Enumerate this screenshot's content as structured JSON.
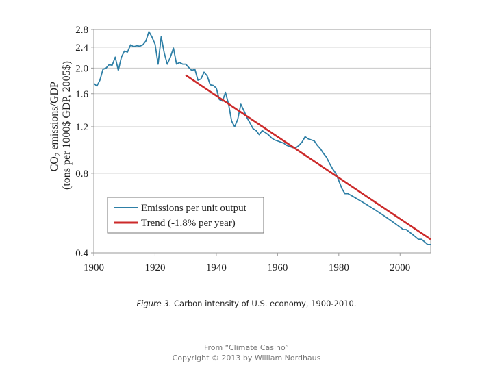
{
  "chart_data": {
    "type": "line",
    "ylabel_line1_prefix": "CO",
    "ylabel_line1_sub": "2",
    "ylabel_line1_suffix": " emissions/GDP",
    "ylabel_line2": "(tons per 1000$ GDP, 2005$)",
    "xlabel": "",
    "y_scale": "log",
    "xlim": [
      1900,
      2010
    ],
    "ylim": [
      0.4,
      2.8
    ],
    "x_ticks": [
      1900,
      1920,
      1940,
      1960,
      1980,
      2000
    ],
    "y_ticks": [
      0.4,
      0.8,
      1.2,
      1.6,
      2.0,
      2.4,
      2.8
    ],
    "y_tick_labels": [
      "0.4",
      "0.8",
      "1.2",
      "1.6",
      "2.0",
      "2.4",
      "2.8"
    ],
    "grid": "horizontal",
    "legend_position": "lower-left",
    "series": [
      {
        "name": "Emissions per unit output",
        "color": "#2e7fa6",
        "x": [
          1900,
          1901,
          1902,
          1903,
          1904,
          1905,
          1906,
          1907,
          1908,
          1909,
          1910,
          1911,
          1912,
          1913,
          1914,
          1915,
          1916,
          1917,
          1918,
          1919,
          1920,
          1921,
          1922,
          1923,
          1924,
          1925,
          1926,
          1927,
          1928,
          1929,
          1930,
          1931,
          1932,
          1933,
          1934,
          1935,
          1936,
          1937,
          1938,
          1939,
          1940,
          1941,
          1942,
          1943,
          1944,
          1945,
          1946,
          1947,
          1948,
          1949,
          1950,
          1951,
          1952,
          1953,
          1954,
          1955,
          1956,
          1957,
          1958,
          1959,
          1960,
          1961,
          1962,
          1963,
          1964,
          1965,
          1966,
          1967,
          1968,
          1969,
          1970,
          1971,
          1972,
          1973,
          1974,
          1975,
          1976,
          1977,
          1978,
          1979,
          1980,
          1981,
          1982,
          1983,
          1984,
          1985,
          1986,
          1987,
          1988,
          1989,
          1990,
          1991,
          1992,
          1993,
          1994,
          1995,
          1996,
          1997,
          1998,
          1999,
          2000,
          2001,
          2002,
          2003,
          2004,
          2005,
          2006,
          2007,
          2008,
          2009,
          2010
        ],
        "values": [
          1.75,
          1.71,
          1.8,
          1.98,
          2.0,
          2.06,
          2.05,
          2.2,
          1.96,
          2.2,
          2.32,
          2.3,
          2.45,
          2.41,
          2.43,
          2.42,
          2.45,
          2.53,
          2.75,
          2.62,
          2.46,
          2.07,
          2.63,
          2.28,
          2.07,
          2.2,
          2.38,
          2.07,
          2.1,
          2.07,
          2.07,
          2.01,
          1.96,
          1.98,
          1.8,
          1.82,
          1.93,
          1.87,
          1.73,
          1.72,
          1.68,
          1.52,
          1.5,
          1.62,
          1.46,
          1.26,
          1.2,
          1.28,
          1.46,
          1.38,
          1.3,
          1.24,
          1.18,
          1.16,
          1.12,
          1.16,
          1.14,
          1.12,
          1.09,
          1.07,
          1.06,
          1.05,
          1.04,
          1.02,
          1.01,
          1.0,
          1.0,
          1.02,
          1.05,
          1.1,
          1.08,
          1.07,
          1.06,
          1.02,
          0.99,
          0.95,
          0.92,
          0.87,
          0.83,
          0.8,
          0.75,
          0.7,
          0.67,
          0.67,
          0.66,
          0.65,
          0.64,
          0.63,
          0.62,
          0.61,
          0.6,
          0.59,
          0.58,
          0.57,
          0.56,
          0.55,
          0.54,
          0.53,
          0.52,
          0.51,
          0.5,
          0.49,
          0.49,
          0.48,
          0.47,
          0.46,
          0.45,
          0.45,
          0.44,
          0.43,
          0.43
        ]
      },
      {
        "name": "Trend (-1.8% per year)",
        "color": "#cc2a2a",
        "x": [
          1930,
          2010
        ],
        "values": [
          1.88,
          0.45
        ]
      }
    ]
  },
  "caption": {
    "label": "Figure 3.",
    "text": " Carbon intensity of U.S. economy, 1900-2010."
  },
  "credit": {
    "line1": "From “Climate Casino”",
    "line2": "Copyright © 2013 by William Nordhaus"
  }
}
